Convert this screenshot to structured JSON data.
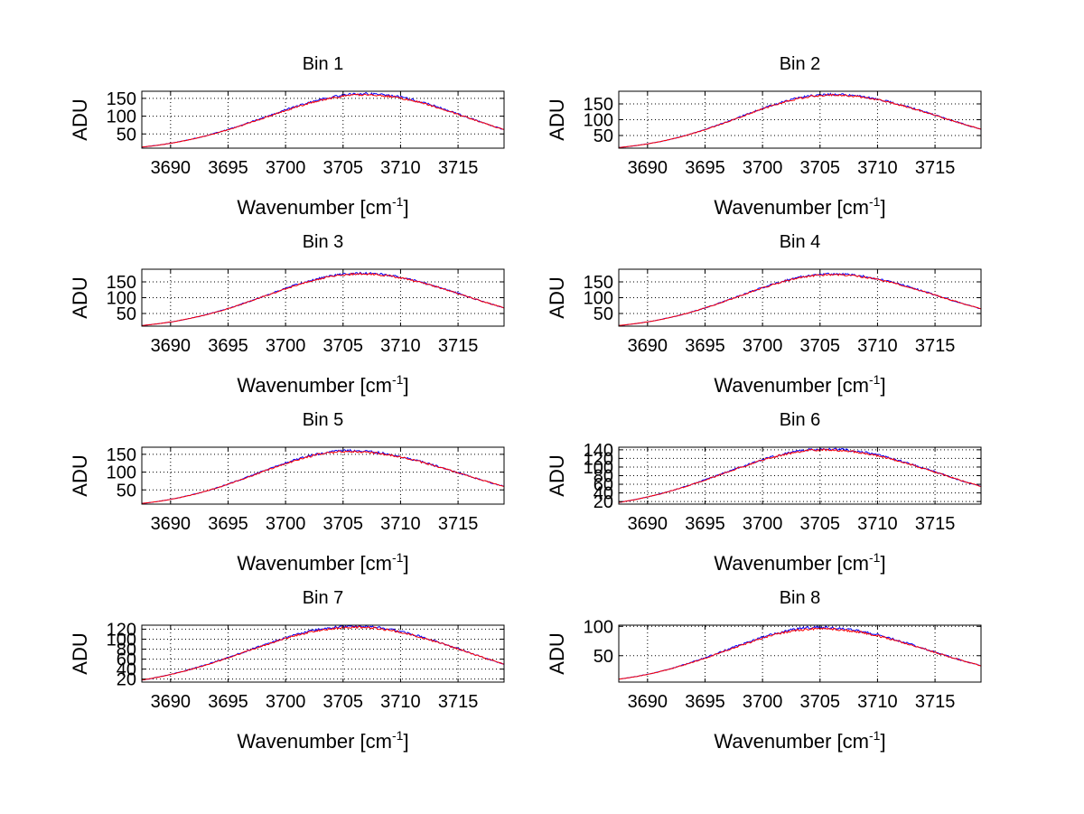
{
  "figure": {
    "background": "#ffffff"
  },
  "chart_data": [
    {
      "type": "line",
      "title": "Bin 1",
      "xlabel": "Wavenumber [cm",
      "xlabel_sup": "-1",
      "xlabel_end": "]",
      "ylabel": "ADU",
      "xlim": [
        3687.5,
        3719.0
      ],
      "ylim": [
        10,
        170
      ],
      "xticks": [
        3690,
        3695,
        3700,
        3705,
        3710,
        3715
      ],
      "yticks": [
        50,
        100,
        150
      ],
      "grid": true,
      "series": [
        {
          "name": "blue",
          "color": "#0000ff",
          "peak": 163,
          "center": 3707.0,
          "edge_start": 13,
          "edge_end": 62,
          "noise": 3.5
        },
        {
          "name": "red",
          "color": "#ff0000",
          "peak": 160,
          "center": 3707.0,
          "edge_start": 13,
          "edge_end": 62,
          "noise": 3.0
        }
      ]
    },
    {
      "type": "line",
      "title": "Bin 2",
      "xlabel": "Wavenumber [cm",
      "xlabel_sup": "-1",
      "xlabel_end": "]",
      "ylabel": "ADU",
      "xlim": [
        3687.5,
        3719.0
      ],
      "ylim": [
        10,
        190
      ],
      "xticks": [
        3690,
        3695,
        3700,
        3705,
        3710,
        3715
      ],
      "yticks": [
        50,
        100,
        150
      ],
      "grid": true,
      "series": [
        {
          "name": "blue",
          "color": "#0000ff",
          "peak": 180,
          "center": 3706.0,
          "edge_start": 12,
          "edge_end": 70,
          "noise": 3.5
        },
        {
          "name": "red",
          "color": "#ff0000",
          "peak": 178,
          "center": 3706.0,
          "edge_start": 12,
          "edge_end": 70,
          "noise": 3.0
        }
      ]
    },
    {
      "type": "line",
      "title": "Bin 3",
      "xlabel": "Wavenumber [cm",
      "xlabel_sup": "-1",
      "xlabel_end": "]",
      "ylabel": "ADU",
      "xlim": [
        3687.5,
        3719.0
      ],
      "ylim": [
        10,
        190
      ],
      "xticks": [
        3690,
        3695,
        3700,
        3705,
        3710,
        3715
      ],
      "yticks": [
        50,
        100,
        150
      ],
      "grid": true,
      "series": [
        {
          "name": "blue",
          "color": "#0000ff",
          "peak": 177,
          "center": 3706.5,
          "edge_start": 12,
          "edge_end": 68,
          "noise": 3.5
        },
        {
          "name": "red",
          "color": "#ff0000",
          "peak": 175,
          "center": 3706.5,
          "edge_start": 12,
          "edge_end": 68,
          "noise": 3.0
        }
      ]
    },
    {
      "type": "line",
      "title": "Bin 4",
      "xlabel": "Wavenumber [cm",
      "xlabel_sup": "-1",
      "xlabel_end": "]",
      "ylabel": "ADU",
      "xlim": [
        3687.5,
        3719.0
      ],
      "ylim": [
        10,
        190
      ],
      "xticks": [
        3690,
        3695,
        3700,
        3705,
        3710,
        3715
      ],
      "yticks": [
        50,
        100,
        150
      ],
      "grid": true,
      "series": [
        {
          "name": "blue",
          "color": "#0000ff",
          "peak": 175,
          "center": 3706.0,
          "edge_start": 12,
          "edge_end": 65,
          "noise": 3.5
        },
        {
          "name": "red",
          "color": "#ff0000",
          "peak": 173,
          "center": 3706.0,
          "edge_start": 12,
          "edge_end": 65,
          "noise": 3.0
        }
      ]
    },
    {
      "type": "line",
      "title": "Bin 5",
      "xlabel": "Wavenumber [cm",
      "xlabel_sup": "-1",
      "xlabel_end": "]",
      "ylabel": "ADU",
      "xlim": [
        3687.5,
        3719.0
      ],
      "ylim": [
        10,
        170
      ],
      "xticks": [
        3690,
        3695,
        3700,
        3705,
        3710,
        3715
      ],
      "yticks": [
        50,
        100,
        150
      ],
      "grid": true,
      "series": [
        {
          "name": "blue",
          "color": "#0000ff",
          "peak": 160,
          "center": 3705.5,
          "edge_start": 12,
          "edge_end": 60,
          "noise": 3.5
        },
        {
          "name": "red",
          "color": "#ff0000",
          "peak": 158,
          "center": 3705.5,
          "edge_start": 12,
          "edge_end": 60,
          "noise": 3.0
        }
      ]
    },
    {
      "type": "line",
      "title": "Bin 6",
      "xlabel": "Wavenumber [cm",
      "xlabel_sup": "-1",
      "xlabel_end": "]",
      "ylabel": "ADU",
      "xlim": [
        3687.5,
        3719.0
      ],
      "ylim": [
        14,
        146
      ],
      "xticks": [
        3690,
        3695,
        3700,
        3705,
        3710,
        3715
      ],
      "yticks": [
        20,
        40,
        60,
        80,
        100,
        120,
        140
      ],
      "grid": true,
      "series": [
        {
          "name": "blue",
          "color": "#0000ff",
          "peak": 142,
          "center": 3705.5,
          "edge_start": 18,
          "edge_end": 55,
          "noise": 2.8
        },
        {
          "name": "red",
          "color": "#ff0000",
          "peak": 140,
          "center": 3705.5,
          "edge_start": 18,
          "edge_end": 55,
          "noise": 2.5
        }
      ]
    },
    {
      "type": "line",
      "title": "Bin 7",
      "xlabel": "Wavenumber [cm",
      "xlabel_sup": "-1",
      "xlabel_end": "]",
      "ylabel": "ADU",
      "xlim": [
        3687.5,
        3719.0
      ],
      "ylim": [
        14,
        128
      ],
      "xticks": [
        3690,
        3695,
        3700,
        3705,
        3710,
        3715
      ],
      "yticks": [
        20,
        40,
        60,
        80,
        100,
        120
      ],
      "grid": true,
      "series": [
        {
          "name": "blue",
          "color": "#0000ff",
          "peak": 126,
          "center": 3706.0,
          "edge_start": 18,
          "edge_end": 50,
          "noise": 2.4
        },
        {
          "name": "red",
          "color": "#ff0000",
          "peak": 124,
          "center": 3706.0,
          "edge_start": 18,
          "edge_end": 50,
          "noise": 2.2
        }
      ]
    },
    {
      "type": "line",
      "title": "Bin 8",
      "xlabel": "Wavenumber [cm",
      "xlabel_sup": "-1",
      "xlabel_end": "]",
      "ylabel": "ADU",
      "xlim": [
        3687.5,
        3719.0
      ],
      "ylim": [
        5,
        102
      ],
      "xticks": [
        3690,
        3695,
        3700,
        3705,
        3710,
        3715
      ],
      "yticks": [
        50,
        100
      ],
      "grid": true,
      "series": [
        {
          "name": "blue",
          "color": "#0000ff",
          "peak": 98,
          "center": 3705.0,
          "edge_start": 10,
          "edge_end": 33,
          "noise": 2.4
        },
        {
          "name": "red",
          "color": "#ff0000",
          "peak": 96,
          "center": 3705.0,
          "edge_start": 10,
          "edge_end": 33,
          "noise": 2.0
        }
      ]
    }
  ]
}
